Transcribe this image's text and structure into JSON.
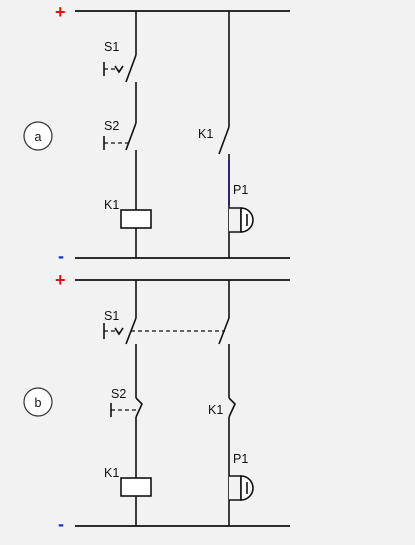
{
  "colors": {
    "background": "#f2f2f2",
    "wire": "#111111",
    "plus": "#e01010",
    "minus": "#1a2cc8",
    "p1_wire": "#2a1a7a"
  },
  "diagram_a": {
    "circle_label": "a",
    "plus": "+",
    "minus": "-",
    "s1": "S1",
    "s2": "S2",
    "k1_coil": "K1",
    "k1_contact": "K1",
    "p1": "P1"
  },
  "diagram_b": {
    "circle_label": "b",
    "plus": "+",
    "minus": "-",
    "s1": "S1",
    "s2": "S2",
    "k1_coil": "K1",
    "k1_contact": "K1",
    "p1": "P1"
  }
}
